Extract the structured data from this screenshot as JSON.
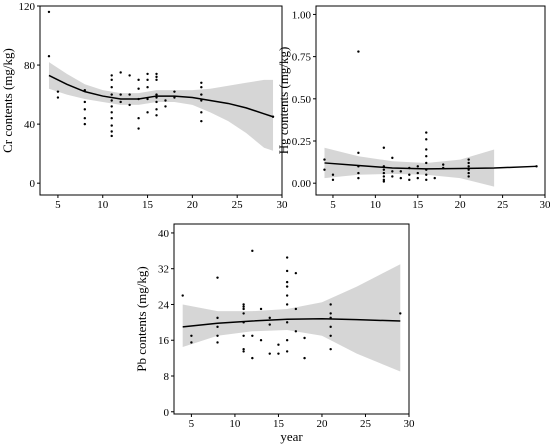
{
  "chart_data": [
    {
      "type": "scatter",
      "ylabel": "Cr contents (mg/kg)",
      "xlabel": "",
      "xlim": [
        3,
        30
      ],
      "ylim": [
        -8,
        120
      ],
      "xticks": [
        "5",
        "10",
        "15",
        "20",
        "25",
        "30"
      ],
      "xtick_values": [
        5,
        10,
        15,
        20,
        25,
        30
      ],
      "yticks": [
        "0",
        "40",
        "80",
        "120"
      ],
      "ytick_values": [
        0,
        40,
        80,
        120
      ],
      "grid": false,
      "points": [
        [
          4,
          116
        ],
        [
          4,
          86
        ],
        [
          5,
          62
        ],
        [
          5,
          58
        ],
        [
          8,
          63
        ],
        [
          8,
          55
        ],
        [
          8,
          50
        ],
        [
          8,
          44
        ],
        [
          8,
          40
        ],
        [
          11,
          73
        ],
        [
          11,
          70
        ],
        [
          11,
          65
        ],
        [
          11,
          60
        ],
        [
          11,
          56
        ],
        [
          11,
          52
        ],
        [
          11,
          48
        ],
        [
          11,
          44
        ],
        [
          11,
          39
        ],
        [
          11,
          35
        ],
        [
          11,
          32
        ],
        [
          12,
          75
        ],
        [
          12,
          60
        ],
        [
          12,
          55
        ],
        [
          13,
          73
        ],
        [
          13,
          60
        ],
        [
          13,
          53
        ],
        [
          14,
          70
        ],
        [
          14,
          64
        ],
        [
          14,
          57
        ],
        [
          14,
          44
        ],
        [
          14,
          37
        ],
        [
          15,
          74
        ],
        [
          15,
          70
        ],
        [
          15,
          65
        ],
        [
          15,
          57
        ],
        [
          15,
          48
        ],
        [
          16,
          74
        ],
        [
          16,
          72
        ],
        [
          16,
          70
        ],
        [
          16,
          60
        ],
        [
          16,
          58
        ],
        [
          16,
          55
        ],
        [
          16,
          50
        ],
        [
          16,
          46
        ],
        [
          17,
          56
        ],
        [
          17,
          52
        ],
        [
          18,
          62
        ],
        [
          18,
          58
        ],
        [
          21,
          68
        ],
        [
          21,
          65
        ],
        [
          21,
          60
        ],
        [
          21,
          56
        ],
        [
          21,
          48
        ],
        [
          21,
          42
        ],
        [
          29,
          45
        ]
      ],
      "fit": [
        [
          4,
          73
        ],
        [
          6,
          67
        ],
        [
          8,
          62
        ],
        [
          10,
          59
        ],
        [
          12,
          57
        ],
        [
          14,
          57
        ],
        [
          16,
          59
        ],
        [
          18,
          59
        ],
        [
          20,
          58
        ],
        [
          22,
          56
        ],
        [
          24,
          54
        ],
        [
          26,
          51
        ],
        [
          28,
          47
        ],
        [
          29,
          45
        ]
      ],
      "ci_upper": [
        [
          4,
          82
        ],
        [
          6,
          74
        ],
        [
          8,
          67
        ],
        [
          10,
          63
        ],
        [
          12,
          61
        ],
        [
          14,
          61
        ],
        [
          16,
          63
        ],
        [
          18,
          63
        ],
        [
          20,
          63
        ],
        [
          22,
          64
        ],
        [
          24,
          66
        ],
        [
          26,
          68
        ],
        [
          28,
          70
        ],
        [
          29,
          70
        ]
      ],
      "ci_lower": [
        [
          4,
          64
        ],
        [
          6,
          60
        ],
        [
          8,
          57
        ],
        [
          10,
          55
        ],
        [
          12,
          53
        ],
        [
          14,
          53
        ],
        [
          16,
          55
        ],
        [
          18,
          55
        ],
        [
          20,
          53
        ],
        [
          22,
          48
        ],
        [
          24,
          42
        ],
        [
          26,
          34
        ],
        [
          28,
          24
        ],
        [
          29,
          22
        ]
      ]
    },
    {
      "type": "scatter",
      "ylabel": "Hg contents (mg/kg)",
      "xlabel": "",
      "xlim": [
        3,
        30
      ],
      "ylim": [
        -0.07,
        1.05
      ],
      "xticks": [
        "5",
        "10",
        "15",
        "20",
        "25",
        "30"
      ],
      "xtick_values": [
        5,
        10,
        15,
        20,
        25,
        30
      ],
      "yticks": [
        "0.00",
        "0.25",
        "0.50",
        "0.75",
        "1.00"
      ],
      "ytick_values": [
        0,
        0.25,
        0.5,
        0.75,
        1.0
      ],
      "grid": false,
      "points": [
        [
          4,
          0.14
        ],
        [
          4,
          0.08
        ],
        [
          5,
          0.05
        ],
        [
          5,
          0.02
        ],
        [
          8,
          0.78
        ],
        [
          8,
          0.18
        ],
        [
          8,
          0.1
        ],
        [
          8,
          0.06
        ],
        [
          8,
          0.03
        ],
        [
          11,
          0.21
        ],
        [
          11,
          0.1
        ],
        [
          11,
          0.08
        ],
        [
          11,
          0.06
        ],
        [
          11,
          0.04
        ],
        [
          11,
          0.02
        ],
        [
          11,
          0.01
        ],
        [
          12,
          0.15
        ],
        [
          12,
          0.07
        ],
        [
          12,
          0.04
        ],
        [
          13,
          0.07
        ],
        [
          13,
          0.03
        ],
        [
          14,
          0.09
        ],
        [
          14,
          0.05
        ],
        [
          14,
          0.02
        ],
        [
          15,
          0.1
        ],
        [
          15,
          0.06
        ],
        [
          15,
          0.03
        ],
        [
          16,
          0.3
        ],
        [
          16,
          0.26
        ],
        [
          16,
          0.2
        ],
        [
          16,
          0.16
        ],
        [
          16,
          0.12
        ],
        [
          16,
          0.08
        ],
        [
          16,
          0.05
        ],
        [
          16,
          0.02
        ],
        [
          17,
          0.03
        ],
        [
          18,
          0.09
        ],
        [
          18,
          0.11
        ],
        [
          21,
          0.14
        ],
        [
          21,
          0.12
        ],
        [
          21,
          0.1
        ],
        [
          21,
          0.08
        ],
        [
          21,
          0.06
        ],
        [
          21,
          0.04
        ],
        [
          29,
          0.1
        ]
      ],
      "fit": [
        [
          4,
          0.12
        ],
        [
          8,
          0.105
        ],
        [
          12,
          0.09
        ],
        [
          16,
          0.085
        ],
        [
          20,
          0.087
        ],
        [
          24,
          0.09
        ],
        [
          29,
          0.1
        ]
      ],
      "ci_upper": [
        [
          4,
          0.21
        ],
        [
          8,
          0.16
        ],
        [
          12,
          0.13
        ],
        [
          16,
          0.12
        ],
        [
          20,
          0.14
        ],
        [
          24,
          0.2
        ]
      ],
      "ci_lower": [
        [
          4,
          0.03
        ],
        [
          8,
          0.05
        ],
        [
          12,
          0.055
        ],
        [
          16,
          0.05
        ],
        [
          20,
          0.03
        ],
        [
          24,
          -0.02
        ]
      ]
    },
    {
      "type": "scatter",
      "ylabel": "Pb contents (mg/kg)",
      "xlabel": "year",
      "xlim": [
        3,
        30
      ],
      "ylim": [
        -0.5,
        42
      ],
      "xticks": [
        "5",
        "10",
        "15",
        "20",
        "25",
        "30"
      ],
      "xtick_values": [
        5,
        10,
        15,
        20,
        25,
        30
      ],
      "yticks": [
        "0",
        "8",
        "16",
        "24",
        "32",
        "40"
      ],
      "ytick_values": [
        0,
        8,
        16,
        24,
        32,
        40
      ],
      "grid": false,
      "points": [
        [
          4,
          26
        ],
        [
          5,
          17
        ],
        [
          5,
          15.5
        ],
        [
          8,
          30
        ],
        [
          8,
          21
        ],
        [
          8,
          19
        ],
        [
          8,
          17
        ],
        [
          8,
          15.5
        ],
        [
          11,
          24
        ],
        [
          11,
          23.5
        ],
        [
          11,
          23
        ],
        [
          11,
          22
        ],
        [
          11,
          20
        ],
        [
          11,
          17
        ],
        [
          11,
          14
        ],
        [
          11,
          13.5
        ],
        [
          12,
          36
        ],
        [
          12,
          12
        ],
        [
          12,
          17
        ],
        [
          13,
          23
        ],
        [
          13,
          16
        ],
        [
          14,
          21
        ],
        [
          14,
          19.5
        ],
        [
          14,
          13
        ],
        [
          15,
          15
        ],
        [
          15,
          13
        ],
        [
          16,
          34.5
        ],
        [
          16,
          31.5
        ],
        [
          16,
          29
        ],
        [
          16,
          28
        ],
        [
          16,
          26
        ],
        [
          16,
          24
        ],
        [
          16,
          20
        ],
        [
          16,
          16
        ],
        [
          16,
          13.5
        ],
        [
          17,
          31
        ],
        [
          17,
          23
        ],
        [
          17,
          18
        ],
        [
          18,
          12
        ],
        [
          18,
          16.5
        ],
        [
          21,
          24
        ],
        [
          21,
          22
        ],
        [
          21,
          21
        ],
        [
          21,
          19
        ],
        [
          21,
          17
        ],
        [
          21,
          14
        ],
        [
          29,
          22
        ]
      ],
      "fit": [
        [
          4,
          19
        ],
        [
          8,
          19.8
        ],
        [
          12,
          20.3
        ],
        [
          16,
          20.7
        ],
        [
          20,
          20.8
        ],
        [
          24,
          20.6
        ],
        [
          29,
          20.3
        ]
      ],
      "ci_upper": [
        [
          4,
          24
        ],
        [
          8,
          22.5
        ],
        [
          12,
          22.5
        ],
        [
          16,
          23
        ],
        [
          20,
          24.5
        ],
        [
          24,
          28
        ],
        [
          29,
          33
        ]
      ],
      "ci_lower": [
        [
          4,
          14.5
        ],
        [
          8,
          17
        ],
        [
          12,
          18
        ],
        [
          16,
          18.3
        ],
        [
          20,
          17
        ],
        [
          24,
          13
        ],
        [
          29,
          9
        ]
      ]
    }
  ]
}
